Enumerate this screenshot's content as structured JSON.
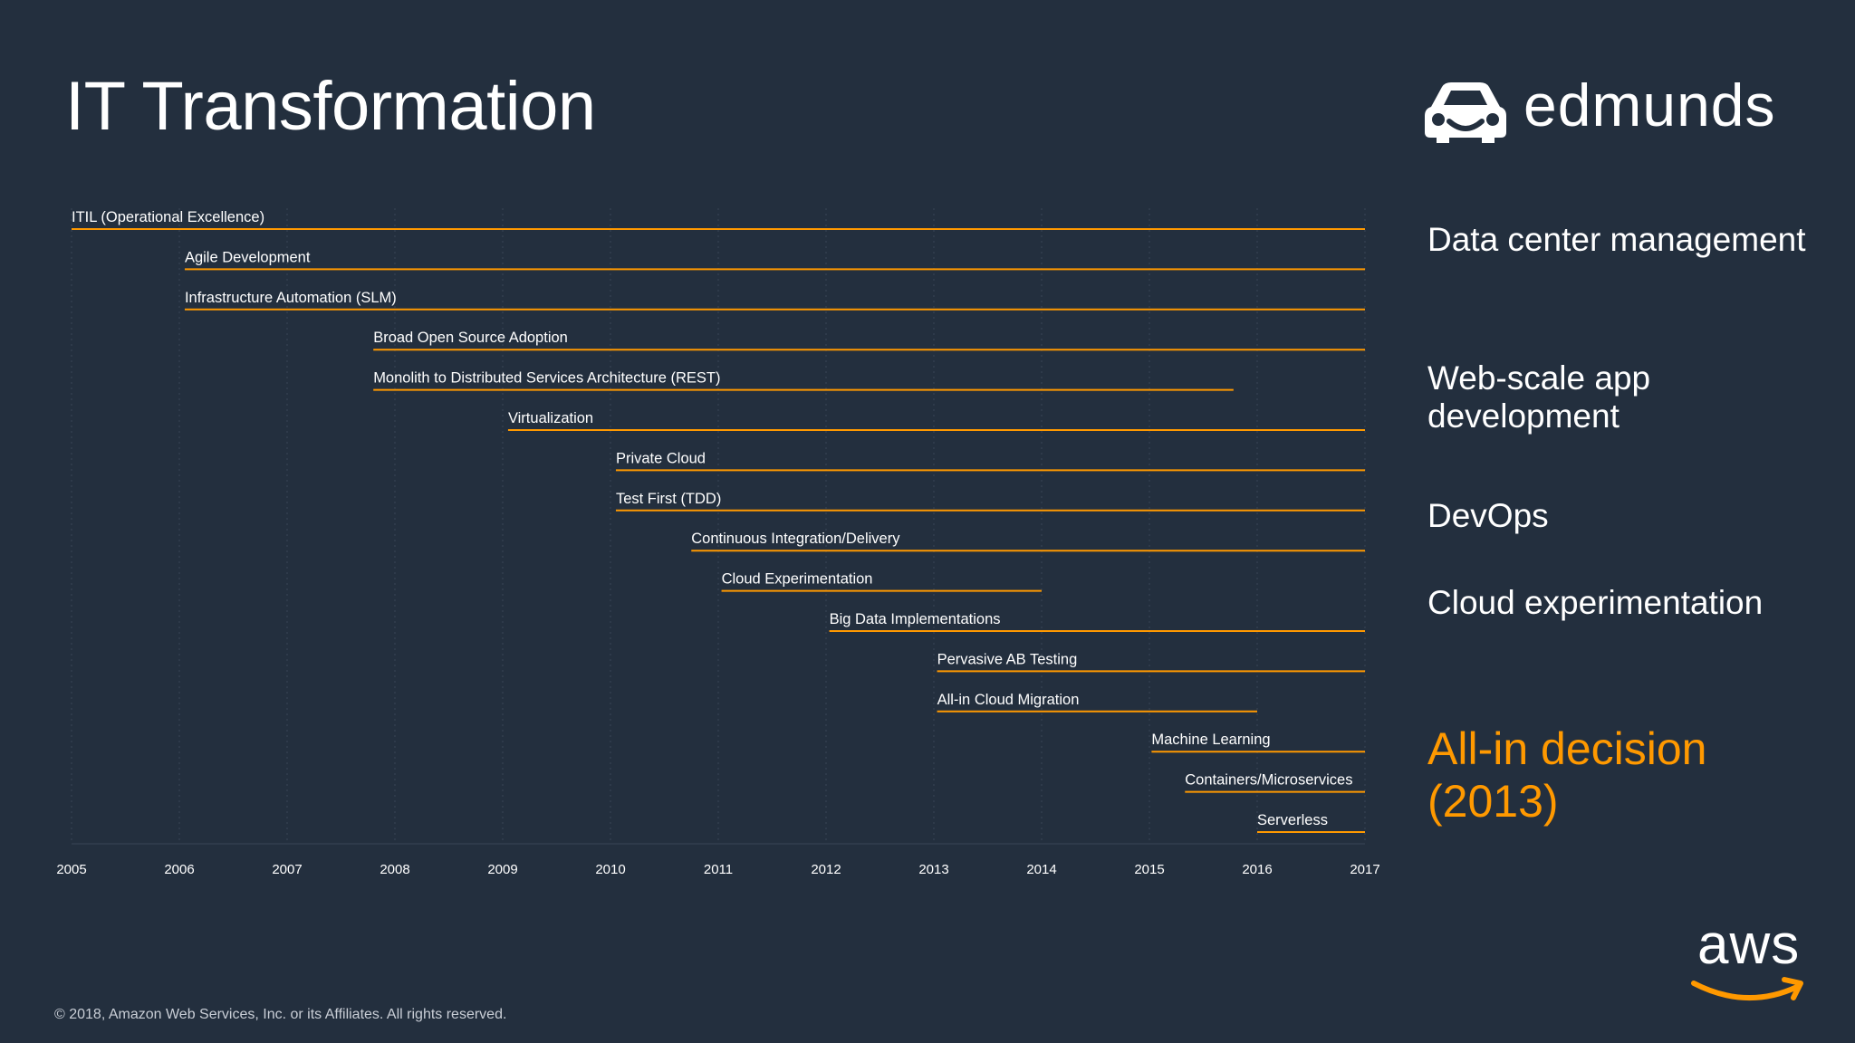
{
  "title": "IT Transformation",
  "logo": {
    "text": "edmunds",
    "icon": "car-face-icon"
  },
  "side_labels": [
    {
      "text": "Data center management",
      "accent": false
    },
    {
      "text": "Web-scale app development",
      "accent": false
    },
    {
      "text": "DevOps",
      "accent": false
    },
    {
      "text": "Cloud experimentation",
      "accent": false
    },
    {
      "text": "All-in decision (2013)",
      "accent": true
    }
  ],
  "colors": {
    "background": "#232f3e",
    "bar": "#ff9900",
    "text": "#ffffff",
    "accent": "#ff9900"
  },
  "chart_data": {
    "type": "gantt",
    "title": "IT Transformation",
    "xlim": [
      2005,
      2017
    ],
    "x_ticks": [
      "2005",
      "2006",
      "2007",
      "2008",
      "2009",
      "2010",
      "2011",
      "2012",
      "2013",
      "2014",
      "2015",
      "2016",
      "2017"
    ],
    "grid": true,
    "bars": [
      {
        "label": "ITIL (Operational Excellence)",
        "start": 2005.0,
        "end": 2017.0
      },
      {
        "label": "Agile Development",
        "start": 2006.05,
        "end": 2017.0
      },
      {
        "label": "Infrastructure Automation (SLM)",
        "start": 2006.05,
        "end": 2017.0
      },
      {
        "label": "Broad Open Source Adoption",
        "start": 2007.8,
        "end": 2017.0
      },
      {
        "label": "Monolith to Distributed Services Architecture (REST)",
        "start": 2007.8,
        "end": 2015.78
      },
      {
        "label": "Virtualization",
        "start": 2009.05,
        "end": 2017.0
      },
      {
        "label": "Private Cloud",
        "start": 2010.05,
        "end": 2017.0
      },
      {
        "label": "Test First (TDD)",
        "start": 2010.05,
        "end": 2017.0
      },
      {
        "label": "Continuous Integration/Delivery",
        "start": 2010.75,
        "end": 2017.0
      },
      {
        "label": "Cloud Experimentation",
        "start": 2011.03,
        "end": 2014.0
      },
      {
        "label": "Big Data Implementations",
        "start": 2012.03,
        "end": 2017.0
      },
      {
        "label": "Pervasive AB Testing",
        "start": 2013.03,
        "end": 2017.0
      },
      {
        "label": "All-in Cloud Migration",
        "start": 2013.03,
        "end": 2016.0
      },
      {
        "label": "Machine Learning",
        "start": 2015.02,
        "end": 2017.0
      },
      {
        "label": "Containers/Microservices",
        "start": 2015.33,
        "end": 2017.0
      },
      {
        "label": "Serverless",
        "start": 2016.0,
        "end": 2017.0
      }
    ]
  },
  "aws_logo": {
    "text": "aws"
  },
  "copyright": "© 2018, Amazon Web Services, Inc. or its Affiliates. All rights reserved."
}
